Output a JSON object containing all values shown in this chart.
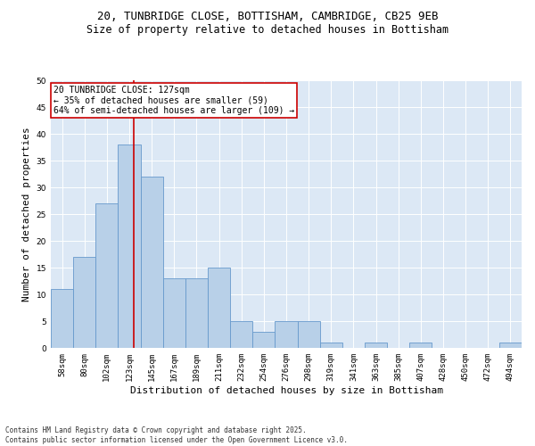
{
  "title_line1": "20, TUNBRIDGE CLOSE, BOTTISHAM, CAMBRIDGE, CB25 9EB",
  "title_line2": "Size of property relative to detached houses in Bottisham",
  "xlabel": "Distribution of detached houses by size in Bottisham",
  "ylabel": "Number of detached properties",
  "bins": [
    "58sqm",
    "80sqm",
    "102sqm",
    "123sqm",
    "145sqm",
    "167sqm",
    "189sqm",
    "211sqm",
    "232sqm",
    "254sqm",
    "276sqm",
    "298sqm",
    "319sqm",
    "341sqm",
    "363sqm",
    "385sqm",
    "407sqm",
    "428sqm",
    "450sqm",
    "472sqm",
    "494sqm"
  ],
  "values": [
    11,
    17,
    27,
    38,
    32,
    13,
    13,
    15,
    5,
    3,
    5,
    5,
    1,
    0,
    1,
    0,
    1,
    0,
    0,
    0,
    1
  ],
  "bar_color": "#b8d0e8",
  "bar_edge_color": "#6699cc",
  "vline_color": "#cc0000",
  "annotation_text": "20 TUNBRIDGE CLOSE: 127sqm\n← 35% of detached houses are smaller (59)\n64% of semi-detached houses are larger (109) →",
  "annotation_box_color": "#ffffff",
  "annotation_box_edge": "#cc0000",
  "ylim": [
    0,
    50
  ],
  "yticks": [
    0,
    5,
    10,
    15,
    20,
    25,
    30,
    35,
    40,
    45,
    50
  ],
  "background_color": "#dce8f5",
  "footer_text": "Contains HM Land Registry data © Crown copyright and database right 2025.\nContains public sector information licensed under the Open Government Licence v3.0.",
  "title_fontsize": 9,
  "subtitle_fontsize": 8.5,
  "axis_label_fontsize": 8,
  "tick_fontsize": 6.5,
  "annotation_fontsize": 7,
  "footer_fontsize": 5.5
}
